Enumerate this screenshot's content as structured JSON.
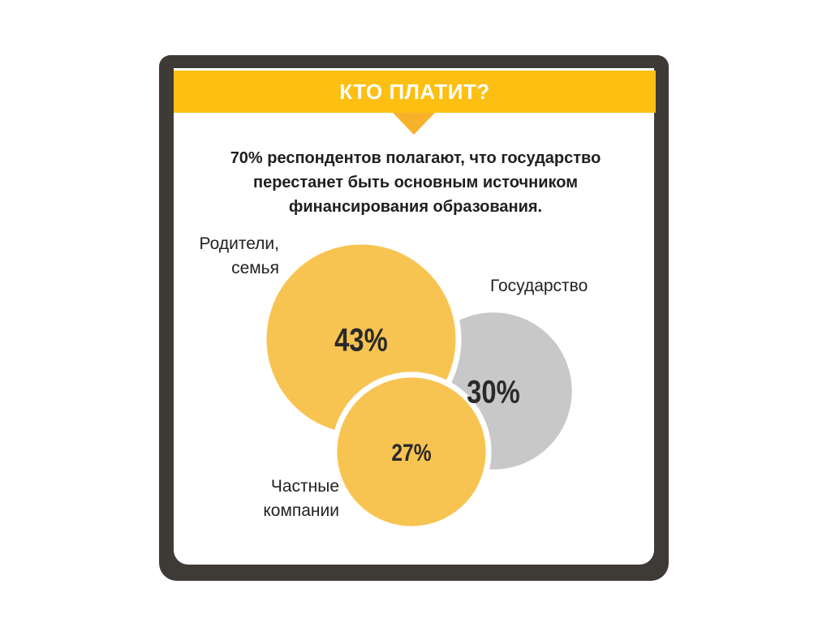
{
  "header": {
    "title": "КТО ПЛАТИТ?"
  },
  "subtitle": "70% респондентов полагают, что государство перестанет быть основным источником финансирования образования.",
  "colors": {
    "accent": "#fcbf12",
    "bubble_yellow": "#f8c451",
    "bubble_gray": "#c8c8c8",
    "frame": "#3e3a35"
  },
  "chart_data": {
    "type": "bubble",
    "title": "КТО ПЛАТИТ?",
    "series": [
      {
        "category": "Родители, семья",
        "label_lines": [
          "Родители,",
          "семья"
        ],
        "value": 43,
        "value_label": "43%",
        "color": "#f8c451"
      },
      {
        "category": "Государство",
        "label_lines": [
          "Государство"
        ],
        "value": 30,
        "value_label": "30%",
        "color": "#c8c8c8"
      },
      {
        "category": "Частные компании",
        "label_lines": [
          "Частные",
          "компании"
        ],
        "value": 27,
        "value_label": "27%",
        "color": "#f8c451"
      }
    ]
  }
}
